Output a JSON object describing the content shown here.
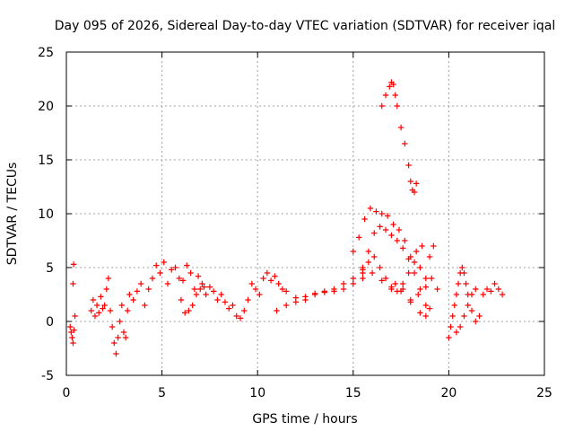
{
  "chart_data": {
    "type": "scatter",
    "title": "Day 095 of 2026, Sidereal Day-to-day VTEC variation (SDTVAR) for receiver iqal",
    "xlabel": "GPS time / hours",
    "ylabel": "SDTVAR / TECUs",
    "xlim": [
      0,
      25
    ],
    "ylim": [
      -5,
      25
    ],
    "xticks": [
      0,
      5,
      10,
      15,
      20,
      25
    ],
    "yticks": [
      -5,
      0,
      5,
      10,
      15,
      20,
      25
    ],
    "xtick_labels": [
      "0",
      "5",
      "10",
      "15",
      "20",
      "25"
    ],
    "ytick_labels": [
      "-5",
      "0",
      "5",
      "10",
      "15",
      "20",
      "25"
    ],
    "grid": true,
    "grid_style": "dotted",
    "marker": "plus",
    "series": [
      {
        "name": "SDTVAR",
        "color": "#ff0000",
        "x": [
          0.2,
          0.25,
          0.3,
          0.35,
          0.4,
          0.35,
          0.38,
          0.45,
          1.3,
          1.4,
          1.5,
          1.6,
          1.7,
          1.8,
          1.9,
          2.0,
          2.1,
          2.2,
          2.3,
          2.4,
          2.5,
          2.6,
          2.7,
          2.8,
          2.9,
          3.0,
          3.1,
          3.2,
          3.3,
          3.5,
          3.7,
          3.9,
          4.1,
          4.3,
          4.5,
          4.7,
          4.9,
          5.1,
          5.3,
          5.5,
          5.7,
          5.9,
          6.1,
          6.3,
          6.5,
          6.7,
          6.9,
          7.1,
          7.3,
          7.5,
          7.7,
          7.9,
          8.1,
          8.3,
          8.5,
          8.7,
          8.9,
          9.1,
          9.3,
          9.5,
          9.7,
          9.9,
          10.1,
          10.3,
          10.5,
          10.7,
          10.9,
          11.1,
          11.3,
          6.0,
          6.2,
          6.4,
          6.6,
          6.8,
          7.0,
          7.2,
          11.5,
          12.0,
          12.5,
          13.0,
          13.5,
          14.0,
          14.5,
          15.0,
          15.5,
          11.0,
          11.5,
          12.0,
          12.5,
          13.0,
          13.5,
          14.0,
          14.5,
          15.0,
          15.5,
          16.0,
          16.5,
          17.0,
          17.5,
          18.0,
          18.5,
          18.8,
          19.0,
          15.0,
          15.3,
          15.6,
          15.9,
          16.2,
          16.5,
          16.8,
          17.1,
          17.4,
          17.7,
          18.0,
          18.3,
          18.6,
          15.5,
          15.8,
          16.1,
          16.4,
          16.7,
          17.0,
          17.3,
          17.6,
          17.9,
          18.2,
          18.5,
          18.8,
          19.0,
          19.2,
          15.5,
          15.8,
          16.1,
          16.4,
          16.7,
          17.0,
          17.3,
          17.6,
          17.9,
          18.2,
          18.5,
          18.8,
          16.5,
          16.7,
          16.9,
          17.0,
          17.1,
          17.2,
          17.3,
          17.5,
          17.7,
          17.9,
          18.0,
          18.1,
          18.2,
          18.3,
          17.2,
          17.6,
          18.0,
          18.4,
          18.8,
          19.1,
          19.4,
          20.0,
          20.1,
          20.2,
          20.3,
          20.4,
          20.5,
          20.6,
          20.7,
          20.8,
          20.9,
          21.0,
          21.2,
          21.4,
          21.6,
          21.8,
          22.0,
          22.2,
          22.4,
          22.6,
          22.8,
          20.4,
          20.6,
          20.8,
          21.0,
          21.2,
          21.4
        ],
        "y": [
          -0.5,
          -1.0,
          -1.5,
          -2.0,
          -0.8,
          3.5,
          5.3,
          0.5,
          1.0,
          2.0,
          0.5,
          1.5,
          0.8,
          2.3,
          1.2,
          1.5,
          3.0,
          4.0,
          1.0,
          -0.5,
          -2.0,
          -3.0,
          -1.5,
          0.0,
          1.5,
          -1.0,
          -1.5,
          1.0,
          2.5,
          2.0,
          2.8,
          3.5,
          1.5,
          3.0,
          4.0,
          5.2,
          4.5,
          5.5,
          3.5,
          4.8,
          5.0,
          4.0,
          3.8,
          5.2,
          4.5,
          3.0,
          4.2,
          3.5,
          2.5,
          3.2,
          2.8,
          2.0,
          2.5,
          1.8,
          1.2,
          1.5,
          0.5,
          0.3,
          1.0,
          2.0,
          3.5,
          3.0,
          2.5,
          4.0,
          4.5,
          3.8,
          4.2,
          3.5,
          3.0,
          2.0,
          0.8,
          1.0,
          1.5,
          2.5,
          3.0,
          3.2,
          2.8,
          2.2,
          2.0,
          2.6,
          2.8,
          3.0,
          3.5,
          4.0,
          4.8,
          1.0,
          1.5,
          1.8,
          2.3,
          2.5,
          2.7,
          2.8,
          3.0,
          3.5,
          4.0,
          4.5,
          3.8,
          3.2,
          2.8,
          1.8,
          0.8,
          0.5,
          1.2,
          6.5,
          7.8,
          9.5,
          10.5,
          10.2,
          10.0,
          9.8,
          9.0,
          8.5,
          7.5,
          6.0,
          6.5,
          7.0,
          5.0,
          6.5,
          8.2,
          8.8,
          8.5,
          8.0,
          7.5,
          6.8,
          5.8,
          4.5,
          3.0,
          1.5,
          6.0,
          7.0,
          4.5,
          5.5,
          6.0,
          5.0,
          4.0,
          3.0,
          2.8,
          3.5,
          4.5,
          5.5,
          5.0,
          4.0,
          20.0,
          21.0,
          21.8,
          22.2,
          22.0,
          21.0,
          20.0,
          18.0,
          16.5,
          14.5,
          13.0,
          12.2,
          12.0,
          12.8,
          3.5,
          3.0,
          2.0,
          2.5,
          3.2,
          4.0,
          3.0,
          -1.5,
          -0.5,
          0.5,
          1.5,
          2.5,
          3.5,
          4.5,
          5.0,
          4.5,
          3.5,
          2.5,
          1.0,
          0.0,
          0.5,
          2.5,
          3.0,
          2.8,
          3.5,
          3.0,
          2.5,
          -1.0,
          -0.5,
          0.5,
          1.5,
          2.5,
          3.0
        ]
      }
    ]
  }
}
